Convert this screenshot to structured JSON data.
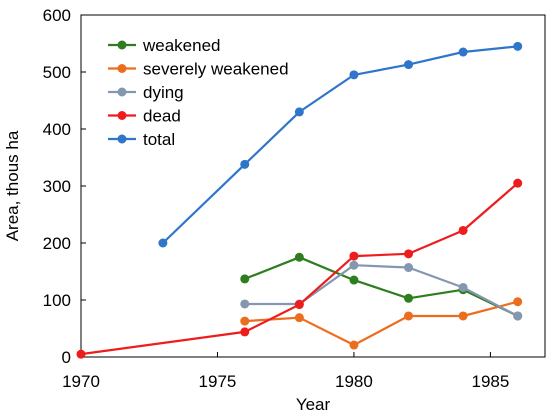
{
  "chart_data": {
    "type": "line",
    "title": "",
    "xlabel": "Year",
    "ylabel": "Area, thous ha",
    "xlim": [
      1970,
      1987
    ],
    "ylim": [
      0,
      600
    ],
    "xticks": [
      "1970",
      "1975",
      "1980",
      "1985"
    ],
    "yticks": [
      "0",
      "100",
      "200",
      "300",
      "400",
      "500",
      "600"
    ],
    "grid": false,
    "legend_position": "top-left",
    "series": [
      {
        "name": "weakened",
        "color": "#2e7d1f",
        "x": [
          1976,
          1978,
          1980,
          1982,
          1984,
          1986
        ],
        "y": [
          137,
          175,
          135,
          103,
          118,
          72
        ]
      },
      {
        "name": "severely weakened",
        "color": "#ed6d1f",
        "x": [
          1976,
          1978,
          1980,
          1982,
          1984,
          1986
        ],
        "y": [
          63,
          69,
          21,
          72,
          72,
          97
        ]
      },
      {
        "name": "dying",
        "color": "#8497b0",
        "x": [
          1976,
          1978,
          1980,
          1982,
          1984,
          1986
        ],
        "y": [
          93,
          93,
          161,
          157,
          122,
          72
        ]
      },
      {
        "name": "dead",
        "color": "#ee1c1c",
        "x": [
          1970,
          1976,
          1978,
          1980,
          1982,
          1984,
          1986
        ],
        "y": [
          5,
          44,
          92,
          177,
          181,
          222,
          305
        ]
      },
      {
        "name": "total",
        "color": "#2f75c9",
        "x": [
          1973,
          1976,
          1978,
          1980,
          1982,
          1984,
          1986
        ],
        "y": [
          200,
          338,
          430,
          495,
          513,
          535,
          545
        ]
      }
    ]
  }
}
